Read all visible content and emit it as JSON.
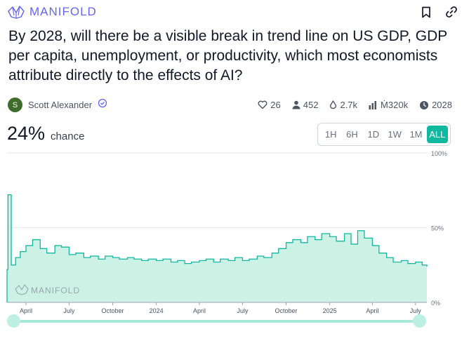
{
  "header": {
    "logo_text": "MANIFOLD",
    "brand_color": "#6366f1",
    "icons": [
      "manifold-logo-icon",
      "bookmark-icon",
      "link-icon"
    ]
  },
  "question": {
    "title": "By 2028, will there be a visible break in trend line on US GDP, GDP per capita, unemployment, or productivity, which most economists attribute directly to the effects of AI?"
  },
  "creator": {
    "avatar_letter": "S",
    "name": "Scott Alexander",
    "verified": true
  },
  "stats": {
    "likes": "26",
    "traders": "452",
    "liquidity": "2.7k",
    "volume": "Ṁ320k",
    "close_year": "2028"
  },
  "probability": {
    "value": "24%",
    "label": "chance"
  },
  "timeframes": {
    "options": [
      "1H",
      "6H",
      "1D",
      "1W",
      "1M",
      "ALL"
    ],
    "selected": "ALL",
    "accent": "#11b8a0"
  },
  "chart_data": {
    "type": "area",
    "y_tick_labels": [
      "100%",
      "50%",
      "0%"
    ],
    "x_tick_labels": [
      "April",
      "July",
      "October",
      "2024",
      "April",
      "July",
      "October",
      "2025",
      "April",
      "July"
    ],
    "x_tick_dates": [
      "2023-04-01",
      "2023-07-01",
      "2023-10-01",
      "2024-01-01",
      "2024-04-01",
      "2024-07-01",
      "2024-10-01",
      "2025-01-01",
      "2025-04-01",
      "2025-07-01"
    ],
    "ylim": [
      0,
      100
    ],
    "watermark": "MANIFOLD",
    "line_color": "#11b8a0",
    "fill_color": "#ccf2e6",
    "series": [
      {
        "x": [
          "2023-02-20",
          "2023-02-22",
          "2023-03-01",
          "2023-03-10",
          "2023-03-20",
          "2023-04-01",
          "2023-04-15",
          "2023-05-01",
          "2023-05-15",
          "2023-06-01",
          "2023-06-15",
          "2023-07-01",
          "2023-07-15",
          "2023-08-01",
          "2023-08-15",
          "2023-09-01",
          "2023-09-15",
          "2023-10-01",
          "2023-10-15",
          "2023-11-01",
          "2023-11-15",
          "2023-12-01",
          "2023-12-15",
          "2024-01-01",
          "2024-01-15",
          "2024-02-01",
          "2024-02-15",
          "2024-03-01",
          "2024-03-15",
          "2024-04-01",
          "2024-04-15",
          "2024-05-01",
          "2024-05-15",
          "2024-06-01",
          "2024-06-15",
          "2024-07-01",
          "2024-07-15",
          "2024-08-01",
          "2024-08-15",
          "2024-09-01",
          "2024-09-15",
          "2024-10-01",
          "2024-10-15",
          "2024-11-01",
          "2024-11-15",
          "2024-12-01",
          "2024-12-15",
          "2025-01-01",
          "2025-01-15",
          "2025-02-01",
          "2025-02-15",
          "2025-03-01",
          "2025-03-15",
          "2025-04-01",
          "2025-04-15",
          "2025-05-01",
          "2025-05-15",
          "2025-06-01",
          "2025-06-15",
          "2025-07-01",
          "2025-07-15",
          "2025-07-25"
        ],
        "y": [
          22,
          72,
          25,
          30,
          34,
          38,
          42,
          36,
          33,
          38,
          37,
          32,
          33,
          30,
          31,
          29,
          31,
          30,
          29,
          30,
          29,
          28,
          29,
          28,
          29,
          27,
          28,
          26,
          27,
          28,
          29,
          27,
          29,
          28,
          30,
          28,
          29,
          31,
          30,
          33,
          36,
          40,
          42,
          40,
          44,
          42,
          46,
          44,
          41,
          46,
          39,
          48,
          43,
          38,
          33,
          30,
          27,
          28,
          26,
          27,
          25,
          24
        ]
      }
    ]
  }
}
